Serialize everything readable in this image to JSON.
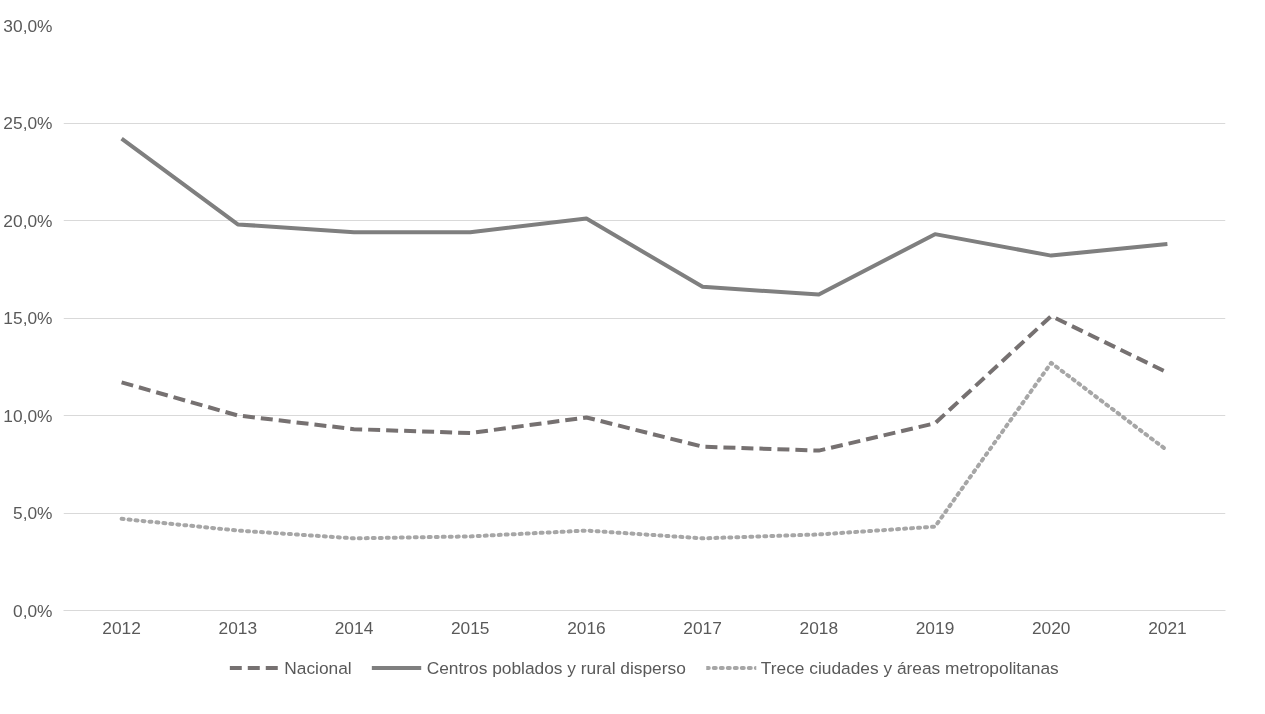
{
  "chart_data": {
    "type": "line",
    "categories": [
      "2012",
      "2013",
      "2014",
      "2015",
      "2016",
      "2017",
      "2018",
      "2019",
      "2020",
      "2021"
    ],
    "series": [
      {
        "name": "Nacional",
        "color": "#767171",
        "line_style": "dashed",
        "values": [
          11.7,
          10.0,
          9.3,
          9.1,
          9.9,
          8.4,
          8.2,
          9.6,
          15.1,
          12.2
        ]
      },
      {
        "name": "Centros poblados y rural disperso",
        "color": "#7f7f7f",
        "line_style": "solid",
        "values": [
          24.2,
          19.8,
          19.4,
          19.4,
          20.1,
          16.6,
          16.2,
          19.3,
          18.2,
          18.8
        ]
      },
      {
        "name": "Trece ciudades y áreas metropolitanas",
        "color": "#a6a6a6",
        "line_style": "dotted",
        "values": [
          4.7,
          4.1,
          3.7,
          3.8,
          4.1,
          3.7,
          3.9,
          4.3,
          12.7,
          8.2
        ]
      }
    ],
    "ylim": [
      0,
      30
    ],
    "yticks": [
      {
        "value": 0,
        "label": "0,0%"
      },
      {
        "value": 5,
        "label": "5,0%"
      },
      {
        "value": 10,
        "label": "10,0%"
      },
      {
        "value": 15,
        "label": "15,0%"
      },
      {
        "value": 20,
        "label": "20,0%"
      },
      {
        "value": 25,
        "label": "25,0%"
      },
      {
        "value": 30,
        "label": "30,0%"
      }
    ],
    "grid": "y",
    "legend": "bottom",
    "marker": "none"
  }
}
